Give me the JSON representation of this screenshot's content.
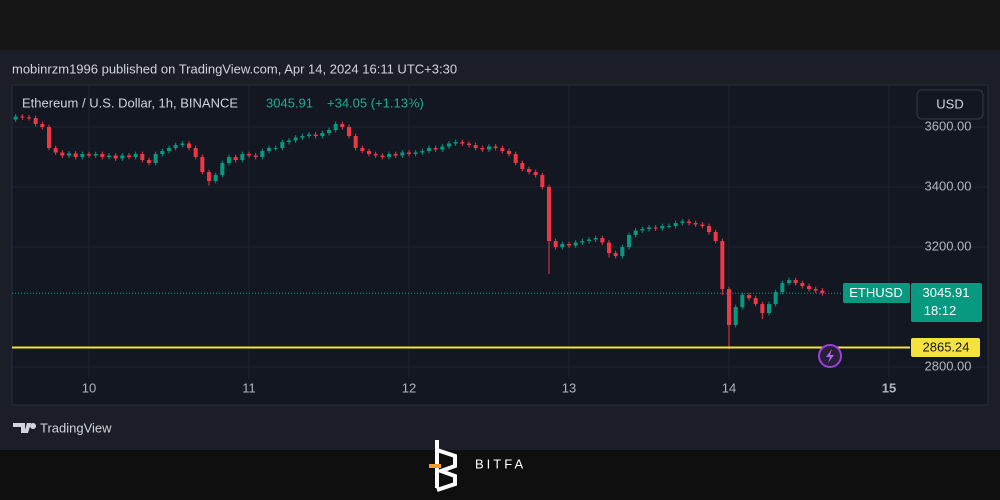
{
  "chart_data": {
    "type": "candlestick",
    "publisher": "mobinrzm1996 published on TradingView.com, Apr 14, 2024 16:11 UTC+3:30",
    "title": "Ethereum / U.S. Dollar, 1h, BINANCE",
    "last_price": 3045.91,
    "change": "+34.05 (+1.13%)",
    "currency": "USD",
    "symbol": "ETHUSD",
    "countdown": "18:12",
    "hline": {
      "value": 2865.24,
      "color": "#f5e23d"
    },
    "up_color": "#089981",
    "down_color": "#f23645",
    "grid": true,
    "xlim": [
      12.45,
      146.4
    ],
    "xticks": [
      {
        "value": 24,
        "label": "10"
      },
      {
        "value": 48,
        "label": "11"
      },
      {
        "value": 72,
        "label": "12"
      },
      {
        "value": 96,
        "label": "13"
      },
      {
        "value": 120,
        "label": "14"
      },
      {
        "value": 144,
        "label": "15"
      }
    ],
    "ylim": [
      2717,
      3740
    ],
    "yticks": [
      {
        "value": 2800,
        "label": "2800.00"
      },
      {
        "value": 3200,
        "label": "3200.00"
      },
      {
        "value": 3400,
        "label": "3400.00"
      },
      {
        "value": 3600,
        "label": "3600.00"
      }
    ],
    "x": [
      13,
      14,
      15,
      16,
      17,
      18,
      19,
      20,
      21,
      22,
      23,
      24,
      25,
      26,
      27,
      28,
      29,
      30,
      31,
      32,
      33,
      34,
      35,
      36,
      37,
      38,
      39,
      40,
      41,
      42,
      43,
      44,
      45,
      46,
      47,
      48,
      49,
      50,
      51,
      52,
      53,
      54,
      55,
      56,
      57,
      58,
      59,
      60,
      61,
      62,
      63,
      64,
      65,
      66,
      67,
      68,
      69,
      70,
      71,
      72,
      73,
      74,
      75,
      76,
      77,
      78,
      79,
      80,
      81,
      82,
      83,
      84,
      85,
      86,
      87,
      88,
      89,
      90,
      91,
      92,
      93,
      94,
      95,
      96,
      97,
      98,
      99,
      100,
      101,
      102,
      103,
      104,
      105,
      106,
      107,
      108,
      109,
      110,
      111,
      112,
      113,
      114,
      115,
      116,
      117,
      118,
      119,
      120,
      121,
      122,
      123,
      124,
      125,
      126,
      127,
      128,
      129,
      130,
      131,
      132,
      133,
      134
    ],
    "open": [
      3625,
      3635,
      3632,
      3630,
      3610,
      3600,
      3530,
      3515,
      3505,
      3512,
      3500,
      3510,
      3505,
      3510,
      3500,
      3505,
      3495,
      3505,
      3500,
      3510,
      3490,
      3480,
      3510,
      3520,
      3530,
      3540,
      3545,
      3530,
      3500,
      3450,
      3420,
      3440,
      3480,
      3500,
      3490,
      3510,
      3505,
      3500,
      3520,
      3530,
      3530,
      3550,
      3555,
      3565,
      3570,
      3575,
      3570,
      3580,
      3590,
      3610,
      3600,
      3570,
      3530,
      3520,
      3510,
      3505,
      3500,
      3510,
      3505,
      3515,
      3510,
      3515,
      3520,
      3530,
      3525,
      3535,
      3545,
      3550,
      3545,
      3540,
      3530,
      3525,
      3535,
      3530,
      3520,
      3510,
      3480,
      3460,
      3450,
      3440,
      3400,
      3220,
      3200,
      3210,
      3205,
      3215,
      3220,
      3225,
      3230,
      3215,
      3180,
      3170,
      3200,
      3240,
      3255,
      3260,
      3265,
      3262,
      3270,
      3270,
      3280,
      3285,
      3280,
      3275,
      3270,
      3250,
      3220,
      3060,
      2940,
      3000,
      3040,
      3030,
      3010,
      2980,
      3010,
      3050,
      3080,
      3090,
      3080,
      3070,
      3060,
      3055
    ],
    "high": [
      3643,
      3643,
      3640,
      3638,
      3618,
      3608,
      3538,
      3523,
      3520,
      3520,
      3518,
      3518,
      3518,
      3518,
      3513,
      3513,
      3513,
      3513,
      3518,
      3518,
      3498,
      3518,
      3528,
      3538,
      3548,
      3553,
      3553,
      3538,
      3508,
      3458,
      3448,
      3488,
      3508,
      3508,
      3518,
      3518,
      3513,
      3528,
      3538,
      3538,
      3558,
      3563,
      3573,
      3578,
      3583,
      3583,
      3588,
      3598,
      3618,
      3618,
      3608,
      3578,
      3538,
      3528,
      3518,
      3513,
      3518,
      3518,
      3523,
      3523,
      3523,
      3528,
      3538,
      3538,
      3543,
      3553,
      3558,
      3558,
      3553,
      3548,
      3538,
      3543,
      3543,
      3538,
      3528,
      3518,
      3488,
      3468,
      3458,
      3448,
      3408,
      3228,
      3218,
      3218,
      3223,
      3228,
      3233,
      3238,
      3238,
      3223,
      3188,
      3208,
      3248,
      3263,
      3268,
      3273,
      3273,
      3278,
      3278,
      3288,
      3293,
      3293,
      3288,
      3283,
      3278,
      3258,
      3228,
      3068,
      3008,
      3048,
      3048,
      3038,
      3018,
      3018,
      3058,
      3088,
      3098,
      3098,
      3088,
      3078,
      3068,
      3063
    ],
    "low": [
      3617,
      3624,
      3622,
      3602,
      3592,
      3522,
      3507,
      3497,
      3497,
      3492,
      3492,
      3497,
      3497,
      3492,
      3492,
      3487,
      3487,
      3492,
      3492,
      3482,
      3472,
      3472,
      3502,
      3512,
      3522,
      3532,
      3522,
      3492,
      3442,
      3405,
      3412,
      3432,
      3472,
      3482,
      3482,
      3497,
      3492,
      3492,
      3512,
      3522,
      3522,
      3542,
      3547,
      3557,
      3562,
      3562,
      3562,
      3572,
      3582,
      3592,
      3562,
      3522,
      3512,
      3502,
      3497,
      3492,
      3492,
      3497,
      3497,
      3502,
      3502,
      3507,
      3512,
      3517,
      3517,
      3527,
      3537,
      3537,
      3532,
      3522,
      3517,
      3517,
      3522,
      3512,
      3502,
      3472,
      3452,
      3442,
      3432,
      3392,
      3110,
      3192,
      3192,
      3197,
      3197,
      3207,
      3212,
      3217,
      3207,
      3165,
      3162,
      3162,
      3192,
      3232,
      3247,
      3252,
      3254,
      3254,
      3262,
      3262,
      3272,
      3272,
      3267,
      3262,
      3242,
      3212,
      3040,
      2860,
      2932,
      2992,
      3022,
      3002,
      2960,
      2972,
      3002,
      3042,
      3072,
      3072,
      3062,
      3052,
      3047,
      3038
    ],
    "close": [
      3635,
      3632,
      3630,
      3610,
      3600,
      3530,
      3515,
      3505,
      3512,
      3500,
      3510,
      3505,
      3510,
      3500,
      3505,
      3495,
      3505,
      3500,
      3510,
      3490,
      3480,
      3510,
      3520,
      3530,
      3540,
      3545,
      3530,
      3500,
      3450,
      3420,
      3440,
      3480,
      3500,
      3490,
      3510,
      3505,
      3500,
      3520,
      3530,
      3530,
      3550,
      3555,
      3565,
      3570,
      3575,
      3570,
      3580,
      3590,
      3610,
      3600,
      3570,
      3530,
      3520,
      3510,
      3505,
      3500,
      3510,
      3505,
      3515,
      3510,
      3515,
      3520,
      3530,
      3525,
      3535,
      3545,
      3550,
      3545,
      3540,
      3530,
      3525,
      3535,
      3530,
      3520,
      3510,
      3480,
      3460,
      3450,
      3440,
      3400,
      3220,
      3200,
      3210,
      3205,
      3215,
      3220,
      3225,
      3230,
      3215,
      3180,
      3170,
      3200,
      3240,
      3255,
      3260,
      3265,
      3262,
      3270,
      3270,
      3280,
      3285,
      3280,
      3275,
      3270,
      3250,
      3220,
      3060,
      2940,
      3000,
      3040,
      3030,
      3010,
      2980,
      3010,
      3050,
      3080,
      3090,
      3080,
      3070,
      3060,
      3055,
      3046
    ]
  },
  "footer": {
    "tv_brand": "TradingView",
    "brand": "BITFA"
  }
}
